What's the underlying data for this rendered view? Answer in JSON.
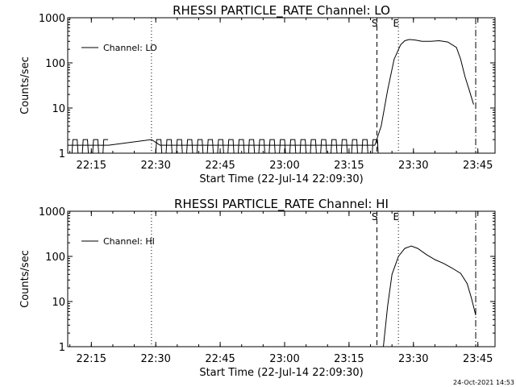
{
  "page": {
    "timestamp": "24-Oct-2021 14:53"
  },
  "colors": {
    "background": "#ffffff",
    "foreground": "#000000"
  },
  "chart_data": [
    {
      "type": "line",
      "title": "RHESSI PARTICLE_RATE Channel: LO",
      "xlabel": "Start Time (22-Jul-14 22:09:30)",
      "ylabel": "Counts/sec",
      "yscale": "log",
      "ylim": [
        1,
        1000
      ],
      "xlim": [
        "22:09:30",
        "23:49:00"
      ],
      "x_ticks": [
        "22:15",
        "22:30",
        "22:45",
        "23:00",
        "23:15",
        "23:30",
        "23:45"
      ],
      "y_ticks": [
        "1",
        "10",
        "100",
        "1000"
      ],
      "legend": {
        "position": "top-left",
        "entries": [
          "Channel: LO"
        ]
      },
      "markers": [
        {
          "time": "22:29:00",
          "style": "dotted",
          "label": ""
        },
        {
          "time": "23:21:30",
          "style": "dashed",
          "label": "S"
        },
        {
          "time": "23:26:30",
          "style": "dotted",
          "label": "E"
        },
        {
          "time": "23:44:30",
          "style": "dashdot",
          "label": ""
        }
      ],
      "series": [
        {
          "name": "Channel: LO",
          "x": [
            "22:09:30",
            "22:11:30",
            "22:13:30",
            "22:15:30",
            "22:17:30",
            "22:19:00",
            "22:29:00",
            "22:31:00",
            "22:40:00",
            "22:50:00",
            "23:00:00",
            "23:10:00",
            "23:21:00",
            "23:22:30",
            "23:24:00",
            "23:25:30",
            "23:27:00",
            "23:28:00",
            "23:29:00",
            "23:30:30",
            "23:32:00",
            "23:34:00",
            "23:36:00",
            "23:38:00",
            "23:40:00",
            "23:41:00",
            "23:42:00",
            "23:43:00",
            "23:44:00"
          ],
          "values": [
            1.5,
            1.5,
            1.5,
            1.5,
            1.5,
            1.5,
            2,
            1.5,
            1.5,
            1.5,
            1.5,
            1.5,
            1.5,
            4,
            25,
            120,
            250,
            310,
            330,
            320,
            300,
            300,
            310,
            290,
            220,
            120,
            50,
            25,
            12
          ],
          "noise_ranges": [
            [
              "22:09:30",
              "22:19:00"
            ],
            [
              "22:29:00",
              "23:22:00"
            ]
          ]
        }
      ]
    },
    {
      "type": "line",
      "title": "RHESSI PARTICLE_RATE Channel: HI",
      "xlabel": "Start Time (22-Jul-14 22:09:30)",
      "ylabel": "Counts/sec",
      "yscale": "log",
      "ylim": [
        1,
        1000
      ],
      "xlim": [
        "22:09:30",
        "23:49:00"
      ],
      "x_ticks": [
        "22:15",
        "22:30",
        "22:45",
        "23:00",
        "23:15",
        "23:30",
        "23:45"
      ],
      "y_ticks": [
        "1",
        "10",
        "100",
        "1000"
      ],
      "legend": {
        "position": "top-left",
        "entries": [
          "Channel: HI"
        ]
      },
      "markers": [
        {
          "time": "22:29:00",
          "style": "dotted",
          "label": ""
        },
        {
          "time": "23:21:30",
          "style": "dashed",
          "label": "S"
        },
        {
          "time": "23:26:30",
          "style": "dotted",
          "label": "E"
        },
        {
          "time": "23:44:30",
          "style": "dashdot",
          "label": ""
        }
      ],
      "series": [
        {
          "name": "Channel: HI",
          "x": [
            "23:23:00",
            "23:24:00",
            "23:25:00",
            "23:26:30",
            "23:28:00",
            "23:29:30",
            "23:31:00",
            "23:33:00",
            "23:35:00",
            "23:37:00",
            "23:39:00",
            "23:41:00",
            "23:42:30",
            "23:43:30",
            "23:44:30"
          ],
          "values": [
            1,
            8,
            40,
            100,
            150,
            170,
            150,
            110,
            85,
            70,
            55,
            42,
            25,
            12,
            5
          ],
          "noise_ranges": []
        }
      ]
    }
  ]
}
